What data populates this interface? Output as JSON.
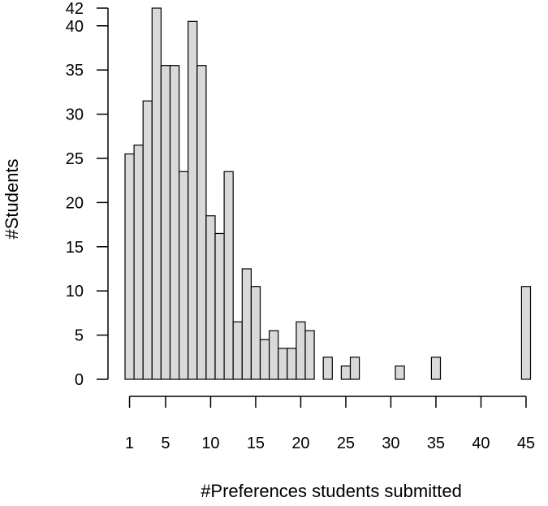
{
  "chart_data": {
    "type": "bar",
    "title": "",
    "xlabel": "#Preferences students submitted",
    "ylabel": "#Students",
    "categories": [
      1,
      2,
      3,
      4,
      5,
      6,
      7,
      8,
      9,
      10,
      11,
      12,
      13,
      14,
      15,
      16,
      17,
      18,
      19,
      20,
      21,
      22,
      23,
      24,
      25,
      26,
      27,
      28,
      29,
      30,
      31,
      32,
      33,
      34,
      35,
      36,
      37,
      38,
      39,
      40,
      41,
      42,
      43,
      44,
      45
    ],
    "values": [
      25.5,
      26.5,
      31.5,
      42,
      35.5,
      35.5,
      23.5,
      40.5,
      35.5,
      18.5,
      16.5,
      23.5,
      6.5,
      12.5,
      10.5,
      4.5,
      5.5,
      3.5,
      3.5,
      6.5,
      5.5,
      0,
      2.5,
      0,
      1.5,
      2.5,
      0,
      0,
      0,
      0,
      1.5,
      0,
      0,
      0,
      2.5,
      0,
      0,
      0,
      0,
      0,
      0,
      0,
      0,
      0,
      10.5
    ],
    "xticks": [
      1,
      5,
      10,
      15,
      20,
      25,
      30,
      35,
      40,
      45
    ],
    "yticks": [
      0,
      5,
      10,
      15,
      20,
      25,
      30,
      35,
      40,
      42
    ],
    "ylim": [
      0,
      42
    ],
    "grid": false,
    "bar_fill": "#d9d9d9",
    "bar_stroke": "#000000"
  }
}
